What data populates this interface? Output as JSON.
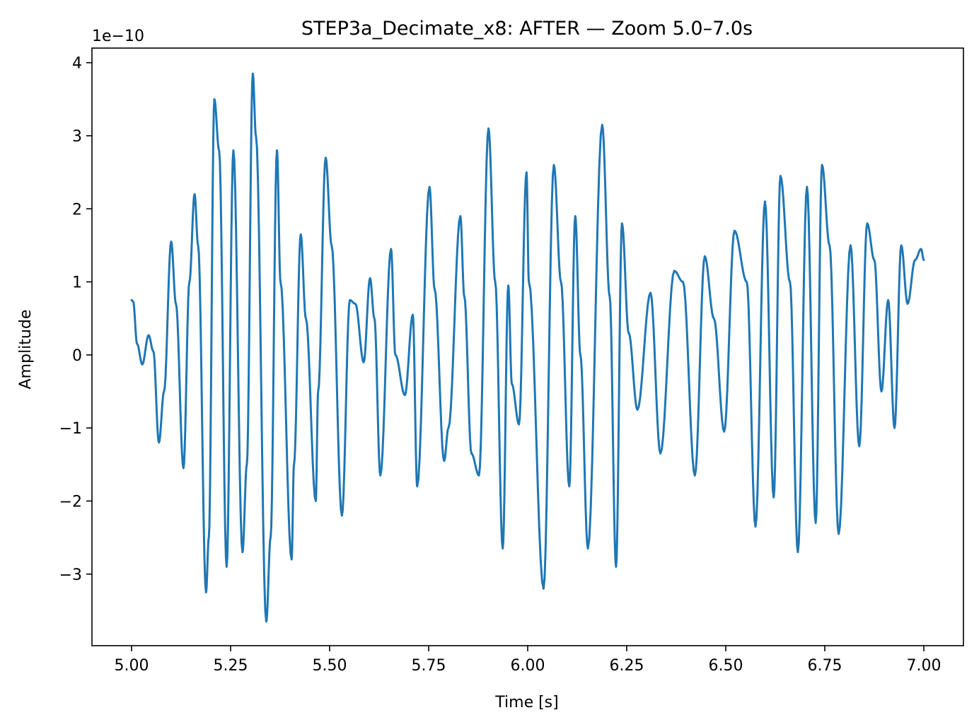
{
  "chart_data": {
    "type": "line",
    "title": "STEP3a_Decimate_x8: AFTER — Zoom 5.0–7.0s",
    "xlabel": "Time [s]",
    "ylabel": "Amplitude",
    "y_scale_label": "1e−10",
    "xlim": [
      4.9,
      7.1
    ],
    "ylim": [
      -3.98,
      4.2
    ],
    "xticks": [
      5.0,
      5.25,
      5.5,
      5.75,
      6.0,
      6.25,
      6.5,
      6.75,
      7.0
    ],
    "xtick_labels": [
      "5.00",
      "5.25",
      "5.50",
      "5.75",
      "6.00",
      "6.25",
      "6.50",
      "6.75",
      "7.00"
    ],
    "yticks": [
      -3,
      -2,
      -1,
      0,
      1,
      2,
      3,
      4
    ],
    "ytick_labels": [
      "−3",
      "−2",
      "−1",
      "0",
      "1",
      "2",
      "3",
      "4"
    ],
    "grid": false,
    "line_color": "#1f77b4",
    "series": [
      {
        "x": [
          5.0,
          5.004,
          5.014,
          5.027,
          5.043,
          5.055,
          5.069,
          5.082,
          5.1,
          5.112,
          5.131,
          5.146,
          5.159,
          5.168,
          5.188,
          5.195,
          5.209,
          5.221,
          5.24,
          5.257,
          5.28,
          5.291,
          5.306,
          5.314,
          5.34,
          5.351,
          5.367,
          5.376,
          5.404,
          5.41,
          5.427,
          5.44,
          5.465,
          5.471,
          5.49,
          5.505,
          5.531,
          5.551,
          5.565,
          5.586,
          5.602,
          5.613,
          5.628,
          5.655,
          5.666,
          5.69,
          5.71,
          5.721,
          5.752,
          5.765,
          5.789,
          5.8,
          5.83,
          5.84,
          5.858,
          5.877,
          5.901,
          5.918,
          5.937,
          5.951,
          5.96,
          5.978,
          5.997,
          6.003,
          6.04,
          6.066,
          6.084,
          6.105,
          6.12,
          6.133,
          6.152,
          6.188,
          6.207,
          6.223,
          6.238,
          6.255,
          6.277,
          6.31,
          6.335,
          6.37,
          6.392,
          6.422,
          6.447,
          6.47,
          6.496,
          6.522,
          6.553,
          6.575,
          6.599,
          6.621,
          6.638,
          6.662,
          6.682,
          6.705,
          6.727,
          6.743,
          6.762,
          6.785,
          6.815,
          6.837,
          6.857,
          6.875,
          6.893,
          6.91,
          6.926,
          6.943,
          6.959,
          6.978,
          6.993,
          7.0
        ],
        "y": [
          0.75,
          0.73,
          0.15,
          -0.13,
          0.27,
          0.05,
          -1.2,
          -0.5,
          1.55,
          0.7,
          -1.55,
          1.0,
          2.2,
          1.5,
          -3.25,
          -2.5,
          3.5,
          2.8,
          -2.9,
          2.8,
          -2.7,
          -1.5,
          3.85,
          3.0,
          -3.65,
          -2.5,
          2.8,
          1.0,
          -2.8,
          -1.5,
          1.65,
          0.5,
          -2.0,
          -0.5,
          2.7,
          1.5,
          -2.2,
          0.75,
          0.7,
          -0.1,
          1.05,
          0.5,
          -1.65,
          1.45,
          0.0,
          -0.55,
          0.55,
          -1.8,
          2.3,
          0.9,
          -1.45,
          -1.0,
          1.9,
          0.8,
          -1.35,
          -1.65,
          3.1,
          1.0,
          -2.65,
          0.95,
          -0.4,
          -0.95,
          2.5,
          1.0,
          -3.2,
          2.6,
          1.0,
          -1.8,
          1.9,
          0.0,
          -2.65,
          3.15,
          0.8,
          -2.9,
          1.8,
          0.3,
          -0.75,
          0.85,
          -1.35,
          1.15,
          1.0,
          -1.65,
          1.35,
          0.5,
          -1.05,
          1.7,
          1.0,
          -2.35,
          2.1,
          -1.95,
          2.45,
          1.0,
          -2.7,
          2.3,
          -2.3,
          2.6,
          1.5,
          -2.45,
          1.5,
          -1.25,
          1.8,
          1.3,
          -0.5,
          0.75,
          -1.0,
          1.5,
          0.7,
          1.3,
          1.45,
          1.3
        ]
      }
    ]
  }
}
